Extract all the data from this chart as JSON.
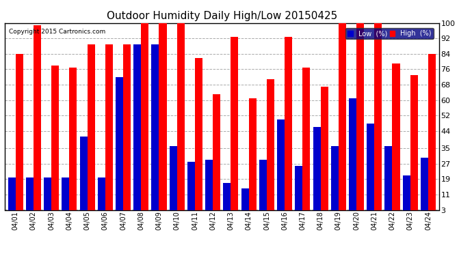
{
  "title": "Outdoor Humidity Daily High/Low 20150425",
  "copyright": "Copyright 2015 Cartronics.com",
  "dates": [
    "04/01",
    "04/02",
    "04/03",
    "04/04",
    "04/05",
    "04/06",
    "04/07",
    "04/08",
    "04/09",
    "04/10",
    "04/11",
    "04/12",
    "04/13",
    "04/14",
    "04/15",
    "04/16",
    "04/17",
    "04/18",
    "04/19",
    "04/20",
    "04/21",
    "04/22",
    "04/23",
    "04/24"
  ],
  "high_values": [
    84,
    99,
    78,
    77,
    89,
    89,
    89,
    100,
    100,
    100,
    82,
    63,
    93,
    61,
    71,
    93,
    77,
    67,
    100,
    100,
    100,
    79,
    73,
    84
  ],
  "low_values": [
    20,
    20,
    20,
    20,
    41,
    20,
    72,
    89,
    89,
    36,
    28,
    29,
    17,
    14,
    29,
    50,
    26,
    46,
    36,
    61,
    48,
    36,
    21,
    30
  ],
  "high_color": "#ff0000",
  "low_color": "#0000cc",
  "background_color": "#ffffff",
  "plot_bg_color": "#ffffff",
  "ylim": [
    3,
    100
  ],
  "yticks": [
    3,
    11,
    19,
    27,
    35,
    44,
    52,
    60,
    68,
    76,
    84,
    92,
    100
  ],
  "grid_color": "#aaaaaa",
  "title_fontsize": 11,
  "legend_labels": [
    "Low  (%)",
    "High  (%)"
  ],
  "bar_width": 0.42
}
